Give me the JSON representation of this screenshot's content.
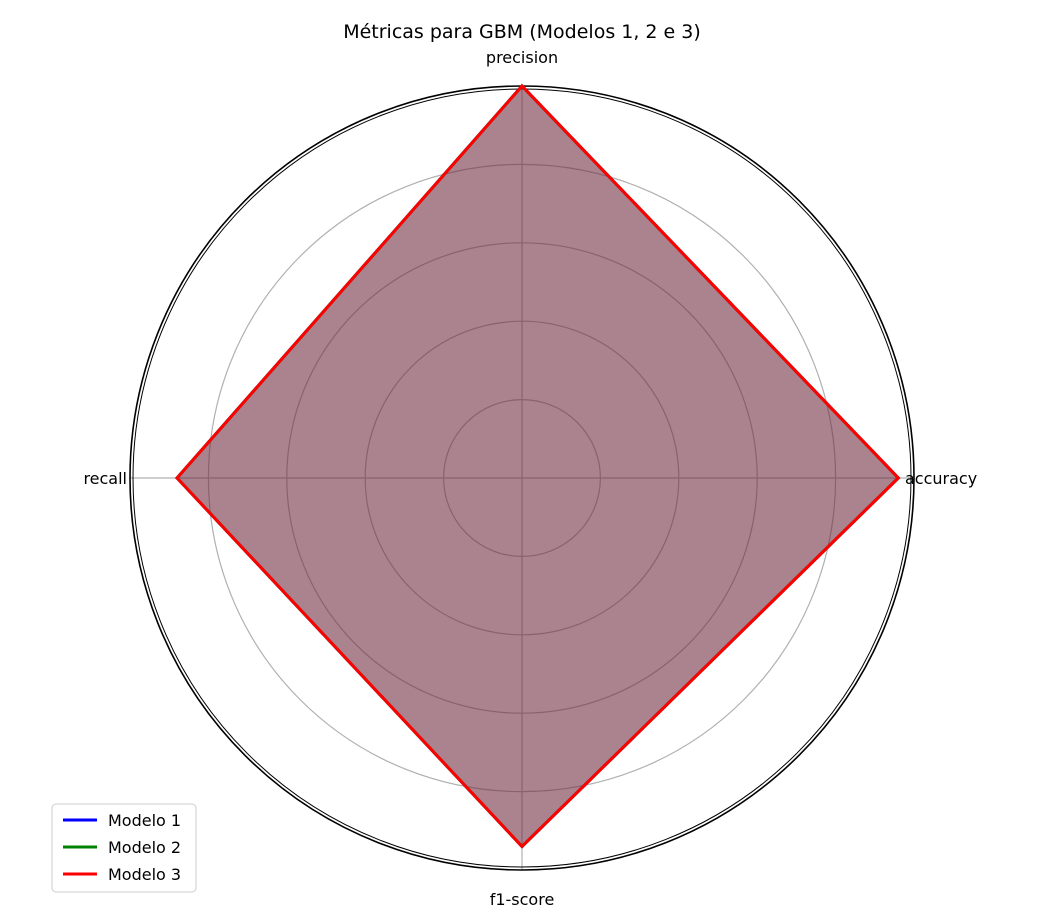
{
  "chart_data": {
    "type": "radar",
    "title": "Métricas para GBM (Modelos 1, 2 e 3)",
    "axes": [
      "accuracy",
      "precision",
      "recall",
      "f1-score"
    ],
    "rlim": [
      0,
      1
    ],
    "rticks": [
      0.2,
      0.4,
      0.6,
      0.8
    ],
    "grid": true,
    "legend_position": "lower-left",
    "series": [
      {
        "name": "Modelo 1",
        "color": "#0000ff",
        "values": [
          0.96,
          1.0,
          0.88,
          0.94
        ]
      },
      {
        "name": "Modelo 2",
        "color": "#008000",
        "values": [
          0.96,
          1.0,
          0.88,
          0.94
        ]
      },
      {
        "name": "Modelo 3",
        "color": "#ff0000",
        "values": [
          0.96,
          1.0,
          0.88,
          0.94
        ]
      }
    ]
  }
}
